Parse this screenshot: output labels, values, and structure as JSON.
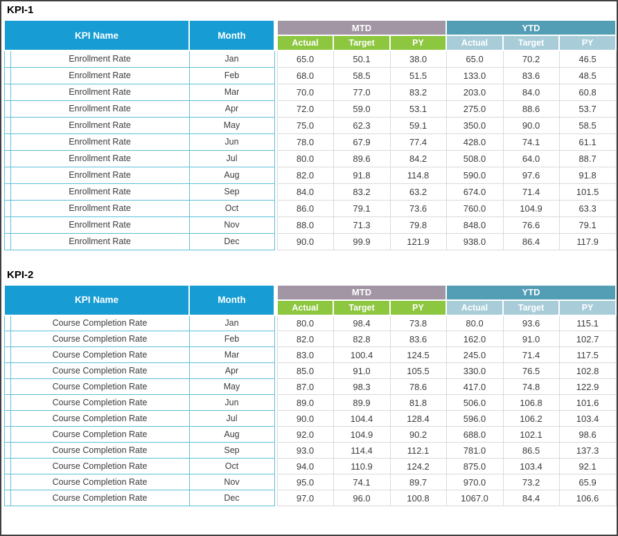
{
  "colors": {
    "header_blue": "#189CD4",
    "mtd_group_header": "#A295A4",
    "mtd_subheader_green": "#8DC63F",
    "ytd_group_header": "#539EB4",
    "ytd_subheader_light_blue": "#A8CDD9",
    "left_grid_cyan": "#58BED6",
    "numeric_grid_gray": "#D9D9D9",
    "outer_border": "#3F3F3F",
    "data_text": "#3A3A3A"
  },
  "tables": [
    {
      "title": "KPI-1",
      "kpi_name_header": "KPI Name",
      "month_header": "Month",
      "group_headers": [
        "MTD",
        "YTD"
      ],
      "sub_headers": [
        "Actual",
        "Target",
        "PY"
      ],
      "rows": [
        {
          "name": "Enrollment Rate",
          "month": "Jan",
          "values": [
            "65.0",
            "50.1",
            "38.0",
            "65.0",
            "70.2",
            "46.5"
          ]
        },
        {
          "name": "Enrollment Rate",
          "month": "Feb",
          "values": [
            "68.0",
            "58.5",
            "51.5",
            "133.0",
            "83.6",
            "48.5"
          ]
        },
        {
          "name": "Enrollment Rate",
          "month": "Mar",
          "values": [
            "70.0",
            "77.0",
            "83.2",
            "203.0",
            "84.0",
            "60.8"
          ]
        },
        {
          "name": "Enrollment Rate",
          "month": "Apr",
          "values": [
            "72.0",
            "59.0",
            "53.1",
            "275.0",
            "88.6",
            "53.7"
          ]
        },
        {
          "name": "Enrollment Rate",
          "month": "May",
          "values": [
            "75.0",
            "62.3",
            "59.1",
            "350.0",
            "90.0",
            "58.5"
          ]
        },
        {
          "name": "Enrollment Rate",
          "month": "Jun",
          "values": [
            "78.0",
            "67.9",
            "77.4",
            "428.0",
            "74.1",
            "61.1"
          ]
        },
        {
          "name": "Enrollment Rate",
          "month": "Jul",
          "values": [
            "80.0",
            "89.6",
            "84.2",
            "508.0",
            "64.0",
            "88.7"
          ]
        },
        {
          "name": "Enrollment Rate",
          "month": "Aug",
          "values": [
            "82.0",
            "91.8",
            "114.8",
            "590.0",
            "97.6",
            "91.8"
          ]
        },
        {
          "name": "Enrollment Rate",
          "month": "Sep",
          "values": [
            "84.0",
            "83.2",
            "63.2",
            "674.0",
            "71.4",
            "101.5"
          ]
        },
        {
          "name": "Enrollment Rate",
          "month": "Oct",
          "values": [
            "86.0",
            "79.1",
            "73.6",
            "760.0",
            "104.9",
            "63.3"
          ]
        },
        {
          "name": "Enrollment Rate",
          "month": "Nov",
          "values": [
            "88.0",
            "71.3",
            "79.8",
            "848.0",
            "76.6",
            "79.1"
          ]
        },
        {
          "name": "Enrollment Rate",
          "month": "Dec",
          "values": [
            "90.0",
            "99.9",
            "121.9",
            "938.0",
            "86.4",
            "117.9"
          ]
        }
      ]
    },
    {
      "title": "KPI-2",
      "kpi_name_header": "KPI Name",
      "month_header": "Month",
      "group_headers": [
        "MTD",
        "YTD"
      ],
      "sub_headers": [
        "Actual",
        "Target",
        "PY"
      ],
      "rows": [
        {
          "name": "Course Completion Rate",
          "month": "Jan",
          "values": [
            "80.0",
            "98.4",
            "73.8",
            "80.0",
            "93.6",
            "115.1"
          ]
        },
        {
          "name": "Course Completion Rate",
          "month": "Feb",
          "values": [
            "82.0",
            "82.8",
            "83.6",
            "162.0",
            "91.0",
            "102.7"
          ]
        },
        {
          "name": "Course Completion Rate",
          "month": "Mar",
          "values": [
            "83.0",
            "100.4",
            "124.5",
            "245.0",
            "71.4",
            "117.5"
          ]
        },
        {
          "name": "Course Completion Rate",
          "month": "Apr",
          "values": [
            "85.0",
            "91.0",
            "105.5",
            "330.0",
            "76.5",
            "102.8"
          ]
        },
        {
          "name": "Course Completion Rate",
          "month": "May",
          "values": [
            "87.0",
            "98.3",
            "78.6",
            "417.0",
            "74.8",
            "122.9"
          ]
        },
        {
          "name": "Course Completion Rate",
          "month": "Jun",
          "values": [
            "89.0",
            "89.9",
            "81.8",
            "506.0",
            "106.8",
            "101.6"
          ]
        },
        {
          "name": "Course Completion Rate",
          "month": "Jul",
          "values": [
            "90.0",
            "104.4",
            "128.4",
            "596.0",
            "106.2",
            "103.4"
          ]
        },
        {
          "name": "Course Completion Rate",
          "month": "Aug",
          "values": [
            "92.0",
            "104.9",
            "90.2",
            "688.0",
            "102.1",
            "98.6"
          ]
        },
        {
          "name": "Course Completion Rate",
          "month": "Sep",
          "values": [
            "93.0",
            "114.4",
            "112.1",
            "781.0",
            "86.5",
            "137.3"
          ]
        },
        {
          "name": "Course Completion Rate",
          "month": "Oct",
          "values": [
            "94.0",
            "110.9",
            "124.2",
            "875.0",
            "103.4",
            "92.1"
          ]
        },
        {
          "name": "Course Completion Rate",
          "month": "Nov",
          "values": [
            "95.0",
            "74.1",
            "89.7",
            "970.0",
            "73.2",
            "65.9"
          ]
        },
        {
          "name": "Course Completion Rate",
          "month": "Dec",
          "values": [
            "97.0",
            "96.0",
            "100.8",
            "1067.0",
            "84.4",
            "106.6"
          ]
        }
      ]
    }
  ]
}
